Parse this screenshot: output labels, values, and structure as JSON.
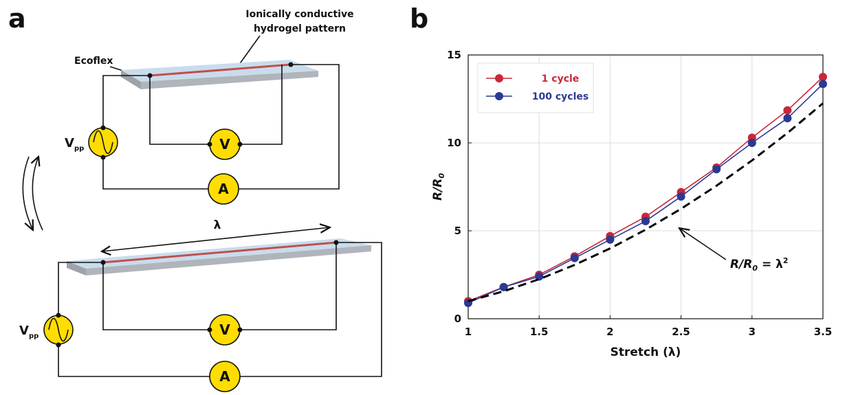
{
  "panel_a": {
    "label": "a",
    "ecoflex": "Ecoflex",
    "hydrogel": [
      "Ionically conductive",
      "hydrogel pattern"
    ],
    "source_main": "V",
    "source_sub": "pp",
    "voltmeter": "V",
    "ammeter": "A",
    "stretch": "λ"
  },
  "panel_b": {
    "label": "b",
    "annotation": {
      "main": "R/R",
      "sub": "0",
      "rest": " = λ",
      "sup": "2"
    }
  },
  "chart_data": {
    "type": "line",
    "xlabel": "Stretch (λ)",
    "ylabel": {
      "main": "R/R",
      "sub": "0"
    },
    "x": [
      1,
      1.25,
      1.5,
      1.75,
      2,
      2.25,
      2.5,
      2.75,
      3,
      3.25,
      3.5
    ],
    "series": [
      {
        "name": "1 cycle",
        "color": "#c8283a",
        "marker": true,
        "values": [
          1.0,
          1.8,
          2.5,
          3.55,
          4.7,
          5.8,
          7.2,
          8.6,
          10.3,
          11.85,
          13.75
        ]
      },
      {
        "name": "100 cycles",
        "color": "#2b3990",
        "marker": true,
        "values": [
          0.9,
          1.8,
          2.4,
          3.45,
          4.5,
          5.55,
          6.95,
          8.5,
          10.0,
          11.4,
          13.35
        ]
      },
      {
        "color": "#000000",
        "dashed": true,
        "values": [
          1,
          1.5625,
          2.25,
          3.0625,
          4,
          5.0625,
          6.25,
          7.5625,
          9,
          10.5625,
          12.25
        ]
      }
    ],
    "xlim": [
      1,
      3.5
    ],
    "xticks": [
      1,
      1.5,
      2,
      2.5,
      3,
      3.5
    ],
    "ylim": [
      0,
      15
    ],
    "yticks": [
      0,
      5,
      10,
      15
    ],
    "grid": true,
    "legend": "upper-left"
  }
}
